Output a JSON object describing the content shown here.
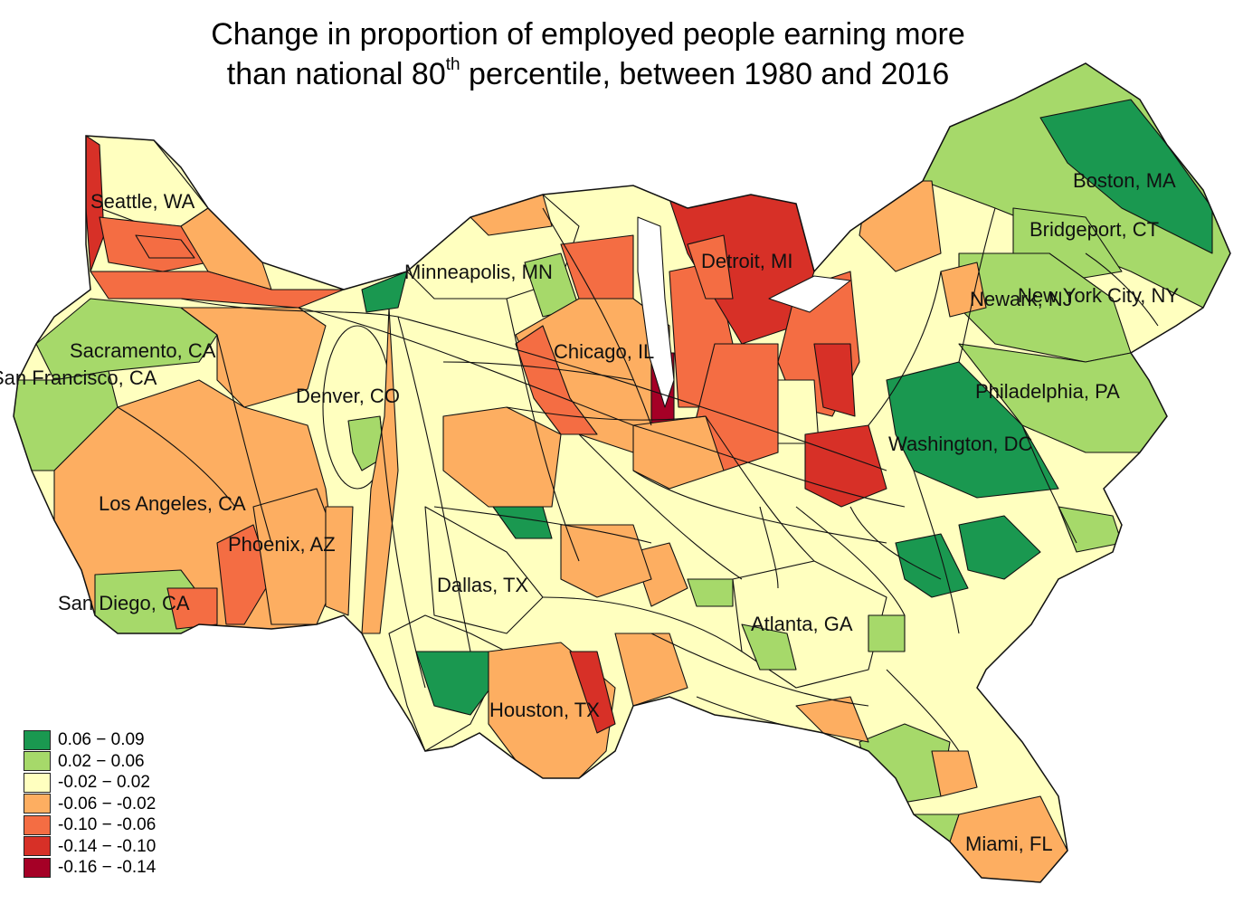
{
  "title": {
    "line1": "Change in proportion of employed people earning more",
    "line2_pre": "than national 80",
    "line2_sup": "th",
    "line2_post": " percentile, between 1980 and 2016"
  },
  "cities": [
    {
      "id": "seattle",
      "label": "Seattle, WA"
    },
    {
      "id": "minneapolis",
      "label": "Minneapolis, MN"
    },
    {
      "id": "detroit",
      "label": "Detroit, MI"
    },
    {
      "id": "boston",
      "label": "Boston, MA"
    },
    {
      "id": "bridgeport",
      "label": "Bridgeport, CT"
    },
    {
      "id": "newark",
      "label": "Newark, NJ"
    },
    {
      "id": "new-york-city",
      "label": "New York City, NY"
    },
    {
      "id": "sacramento",
      "label": "Sacramento, CA"
    },
    {
      "id": "san-francisco",
      "label": "San Francisco, CA"
    },
    {
      "id": "chicago",
      "label": "Chicago, IL"
    },
    {
      "id": "denver",
      "label": "Denver, CO"
    },
    {
      "id": "philadelphia",
      "label": "Philadelphia, PA"
    },
    {
      "id": "washington",
      "label": "Washington, DC"
    },
    {
      "id": "los-angeles",
      "label": "Los Angeles, CA"
    },
    {
      "id": "phoenix",
      "label": "Phoenix, AZ"
    },
    {
      "id": "dallas",
      "label": "Dallas, TX"
    },
    {
      "id": "san-diego",
      "label": "San Diego, CA"
    },
    {
      "id": "atlanta",
      "label": "Atlanta, GA"
    },
    {
      "id": "houston",
      "label": "Houston, TX"
    },
    {
      "id": "miami",
      "label": "Miami, FL"
    }
  ],
  "legend": [
    {
      "label": "0.06 − 0.09",
      "color": "#1a9850"
    },
    {
      "label": "0.02 − 0.06",
      "color": "#a6d96a"
    },
    {
      "label": "-0.02 − 0.02",
      "color": "#ffffbf"
    },
    {
      "label": "-0.06 − -0.02",
      "color": "#fdae61"
    },
    {
      "label": "-0.10 − -0.06",
      "color": "#f46d43"
    },
    {
      "label": "-0.14 − -0.10",
      "color": "#d73027"
    },
    {
      "label": "-0.16 − -0.14",
      "color": "#a50026"
    }
  ]
}
